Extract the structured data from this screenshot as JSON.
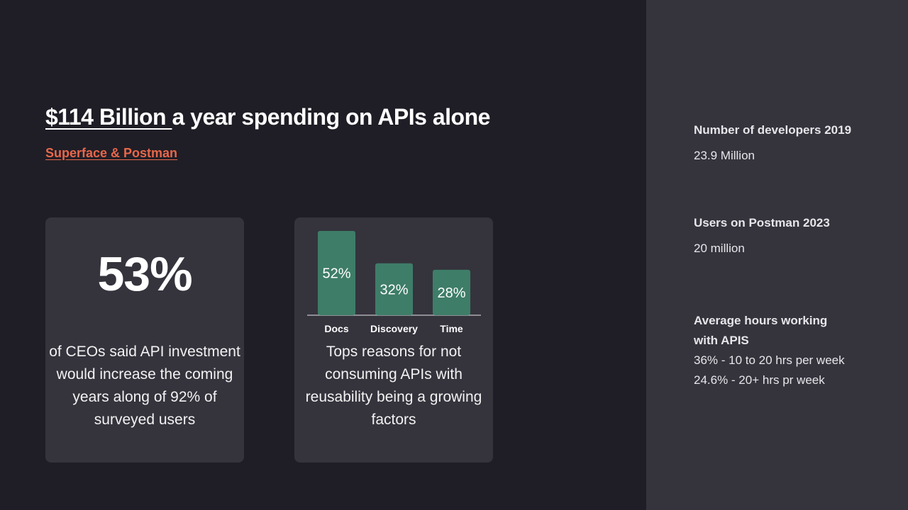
{
  "headline": {
    "amount": "$114 Billion ",
    "rest": "a year spending on APIs alone"
  },
  "source": {
    "label": "Superface & Postman"
  },
  "card_ceo": {
    "stat": "53%",
    "description": "of CEOs said API investment would increase the coming years along of 92% of surveyed users"
  },
  "card_reasons": {
    "description": "Tops reasons for not consuming APIs with reusability being a growing factors"
  },
  "chart_data": {
    "type": "bar",
    "categories": [
      "Docs",
      "Discovery",
      "Time"
    ],
    "values": [
      52,
      32,
      28
    ],
    "value_labels": [
      "52%",
      "32%",
      "28%"
    ],
    "ylim": [
      0,
      52
    ],
    "bar_color": "#3e7d68",
    "grid": false
  },
  "sidebar": {
    "items": [
      {
        "label": "Number of developers 2019",
        "value": "23.9 Million"
      },
      {
        "label": "Users on Postman 2023",
        "value": "20 million"
      },
      {
        "label": "Average hours working with APIS",
        "values": [
          "36% - 10 to 20 hrs per week",
          "24.6% - 20+ hrs pr week"
        ]
      }
    ]
  },
  "colors": {
    "background": "#1f1e26",
    "panel": "#35343d",
    "accent": "#e8674a",
    "bar": "#3e7d68"
  }
}
